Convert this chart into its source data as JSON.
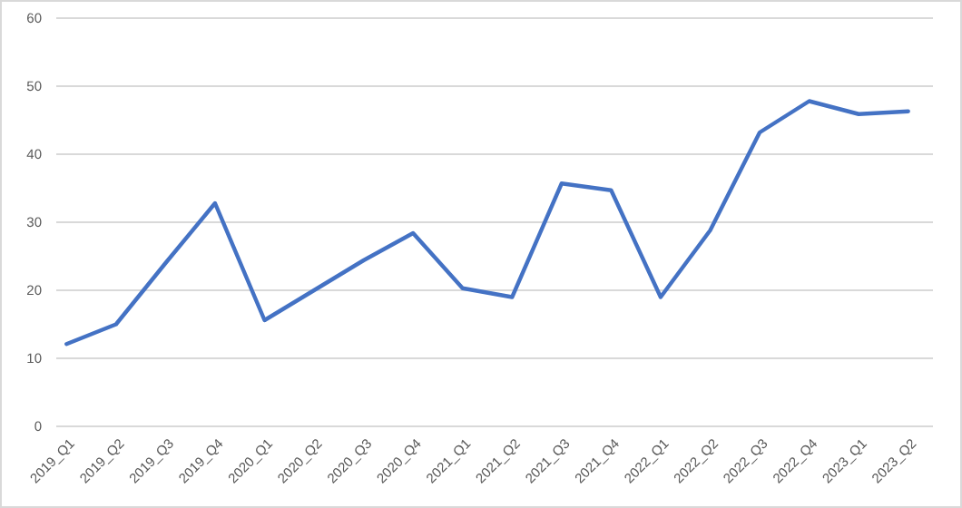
{
  "chart_data": {
    "type": "line",
    "categories": [
      "2019_Q1",
      "2019_Q2",
      "2019_Q3",
      "2019_Q4",
      "2020_Q1",
      "2020_Q2",
      "2020_Q3",
      "2020_Q4",
      "2021_Q1",
      "2021_Q2",
      "2021_Q3",
      "2021_Q4",
      "2022_Q1",
      "2022_Q2",
      "2022_Q3",
      "2022_Q4",
      "2023_Q1",
      "2023_Q2"
    ],
    "series": [
      {
        "color": "#4472c4",
        "values": [
          12.1,
          15,
          24,
          32.8,
          15.6,
          20,
          24.4,
          28.4,
          20.3,
          19,
          35.7,
          34.7,
          19,
          28.8,
          43.2,
          47.8,
          45.9,
          46.3
        ]
      }
    ],
    "ylim": [
      0,
      60
    ],
    "yticks": [
      0,
      10,
      20,
      30,
      40,
      50,
      60
    ],
    "grid": "y",
    "marker": "none",
    "line_style": "solid"
  }
}
